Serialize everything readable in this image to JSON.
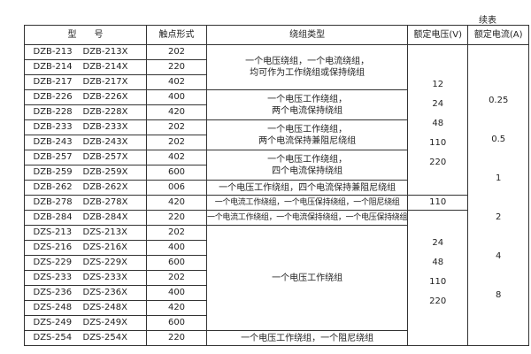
{
  "continued_label": "续表",
  "headers": [
    "型　　号",
    "触点形式",
    "绕组类型",
    "额定电压(V)",
    "额定电流(A)"
  ],
  "rows": [
    {
      "model": "DZB-213",
      "model_x": "DZB-213X",
      "contact": "202"
    },
    {
      "model": "DZB-214",
      "model_x": "DZB-214X",
      "contact": "220"
    },
    {
      "model": "DZB-217",
      "model_x": "DZB-217X",
      "contact": "402"
    },
    {
      "model": "DZB-226",
      "model_x": "DZB-226X",
      "contact": "400"
    },
    {
      "model": "DZB-228",
      "model_x": "DZB-228X",
      "contact": "420"
    },
    {
      "model": "DZB-233",
      "model_x": "DZB-233X",
      "contact": "202"
    },
    {
      "model": "DZB-243",
      "model_x": "DZB-243X",
      "contact": "202"
    },
    {
      "model": "DZB-257",
      "model_x": "DZB-257X",
      "contact": "402"
    },
    {
      "model": "DZB-259",
      "model_x": "DZB-259X",
      "contact": "600"
    },
    {
      "model": "DZB-262",
      "model_x": "DZB-262X",
      "contact": "006"
    },
    {
      "model": "DZB-278",
      "model_x": "DZB-278X",
      "contact": "420"
    },
    {
      "model": "DZB-284",
      "model_x": "DZB-284X",
      "contact": "220"
    },
    {
      "model": "DZS-213",
      "model_x": "DZS-213X",
      "contact": "202"
    },
    {
      "model": "DZS-216",
      "model_x": "DZS-216X",
      "contact": "400"
    },
    {
      "model": "DZS-229",
      "model_x": "DZS-229X",
      "contact": "600"
    },
    {
      "model": "DZS-233",
      "model_x": "DZS-233X",
      "contact": "202"
    },
    {
      "model": "DZS-236",
      "model_x": "DZS-236X",
      "contact": "400"
    },
    {
      "model": "DZS-248",
      "model_x": "DZS-248X",
      "contact": "420"
    },
    {
      "model": "DZS-249",
      "model_x": "DZS-249X",
      "contact": "600"
    },
    {
      "model": "DZS-254",
      "model_x": "DZS-254X",
      "contact": "220"
    }
  ],
  "windings": [
    [
      "一个电压绕组，一个电流绕组，",
      "均可作为工作绕组或保持绕组"
    ],
    [
      "一个电压工作绕组，",
      "两个电流保持绕组"
    ],
    [
      "一个电压工作绕组，",
      "两个电流保持兼阻尼绕组"
    ],
    [
      "一个电压工作绕组，",
      "四个电流保持绕组"
    ],
    [
      "一个电压工作绕组，四个电流保持兼阻尼绕组"
    ],
    [
      "一个电流工作绕组，一个电压保持绕组，一个阻尼绕组"
    ],
    [
      "一个电流工作绕组，一个电流保持绕组，一个电压保持绕组"
    ],
    [
      "一个电压工作绕组"
    ],
    [
      "一个电压工作绕组，一个阻尼绕组"
    ]
  ],
  "voltages": {
    "group1": [
      "12",
      "24",
      "48",
      "110",
      "220"
    ],
    "group2": [
      "110"
    ],
    "group3": [
      "24",
      "48",
      "110",
      "220"
    ]
  },
  "currents": [
    "0.25",
    "0.5",
    "1",
    "2",
    "4",
    "8"
  ]
}
